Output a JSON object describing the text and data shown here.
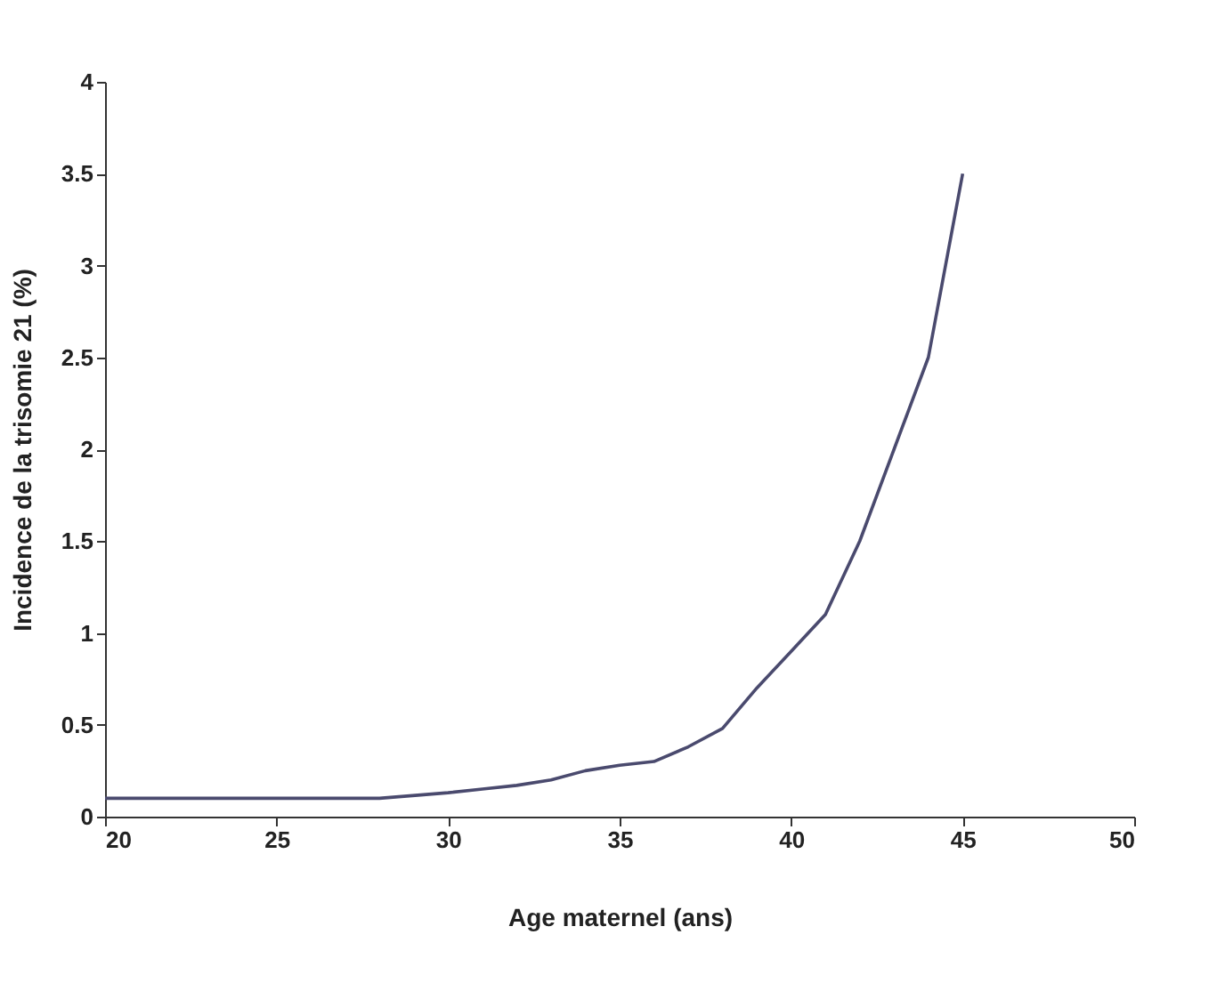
{
  "chart_data": {
    "type": "line",
    "xlabel": "Age maternel (ans)",
    "ylabel": "Incidence de la trisomie 21 (%)",
    "x": [
      20,
      22,
      24,
      26,
      28,
      30,
      31,
      32,
      33,
      34,
      35,
      36,
      37,
      38,
      39,
      40,
      41,
      42,
      43,
      44,
      45
    ],
    "series": [
      {
        "color": "#4a4a6e",
        "values": [
          0.1,
          0.1,
          0.1,
          0.1,
          0.1,
          0.13,
          0.15,
          0.17,
          0.2,
          0.25,
          0.28,
          0.3,
          0.38,
          0.48,
          0.7,
          0.9,
          1.1,
          1.5,
          2.0,
          2.5,
          3.5
        ]
      }
    ],
    "xlim": [
      20,
      50
    ],
    "xticks": [
      20,
      25,
      30,
      35,
      40,
      45,
      50
    ],
    "ylim": [
      0,
      4
    ],
    "yticks": [
      0,
      0.5,
      1,
      1.5,
      2,
      2.5,
      3,
      3.5,
      4
    ],
    "grid": false,
    "legend": false,
    "marker": "none",
    "line_style": "solid"
  }
}
